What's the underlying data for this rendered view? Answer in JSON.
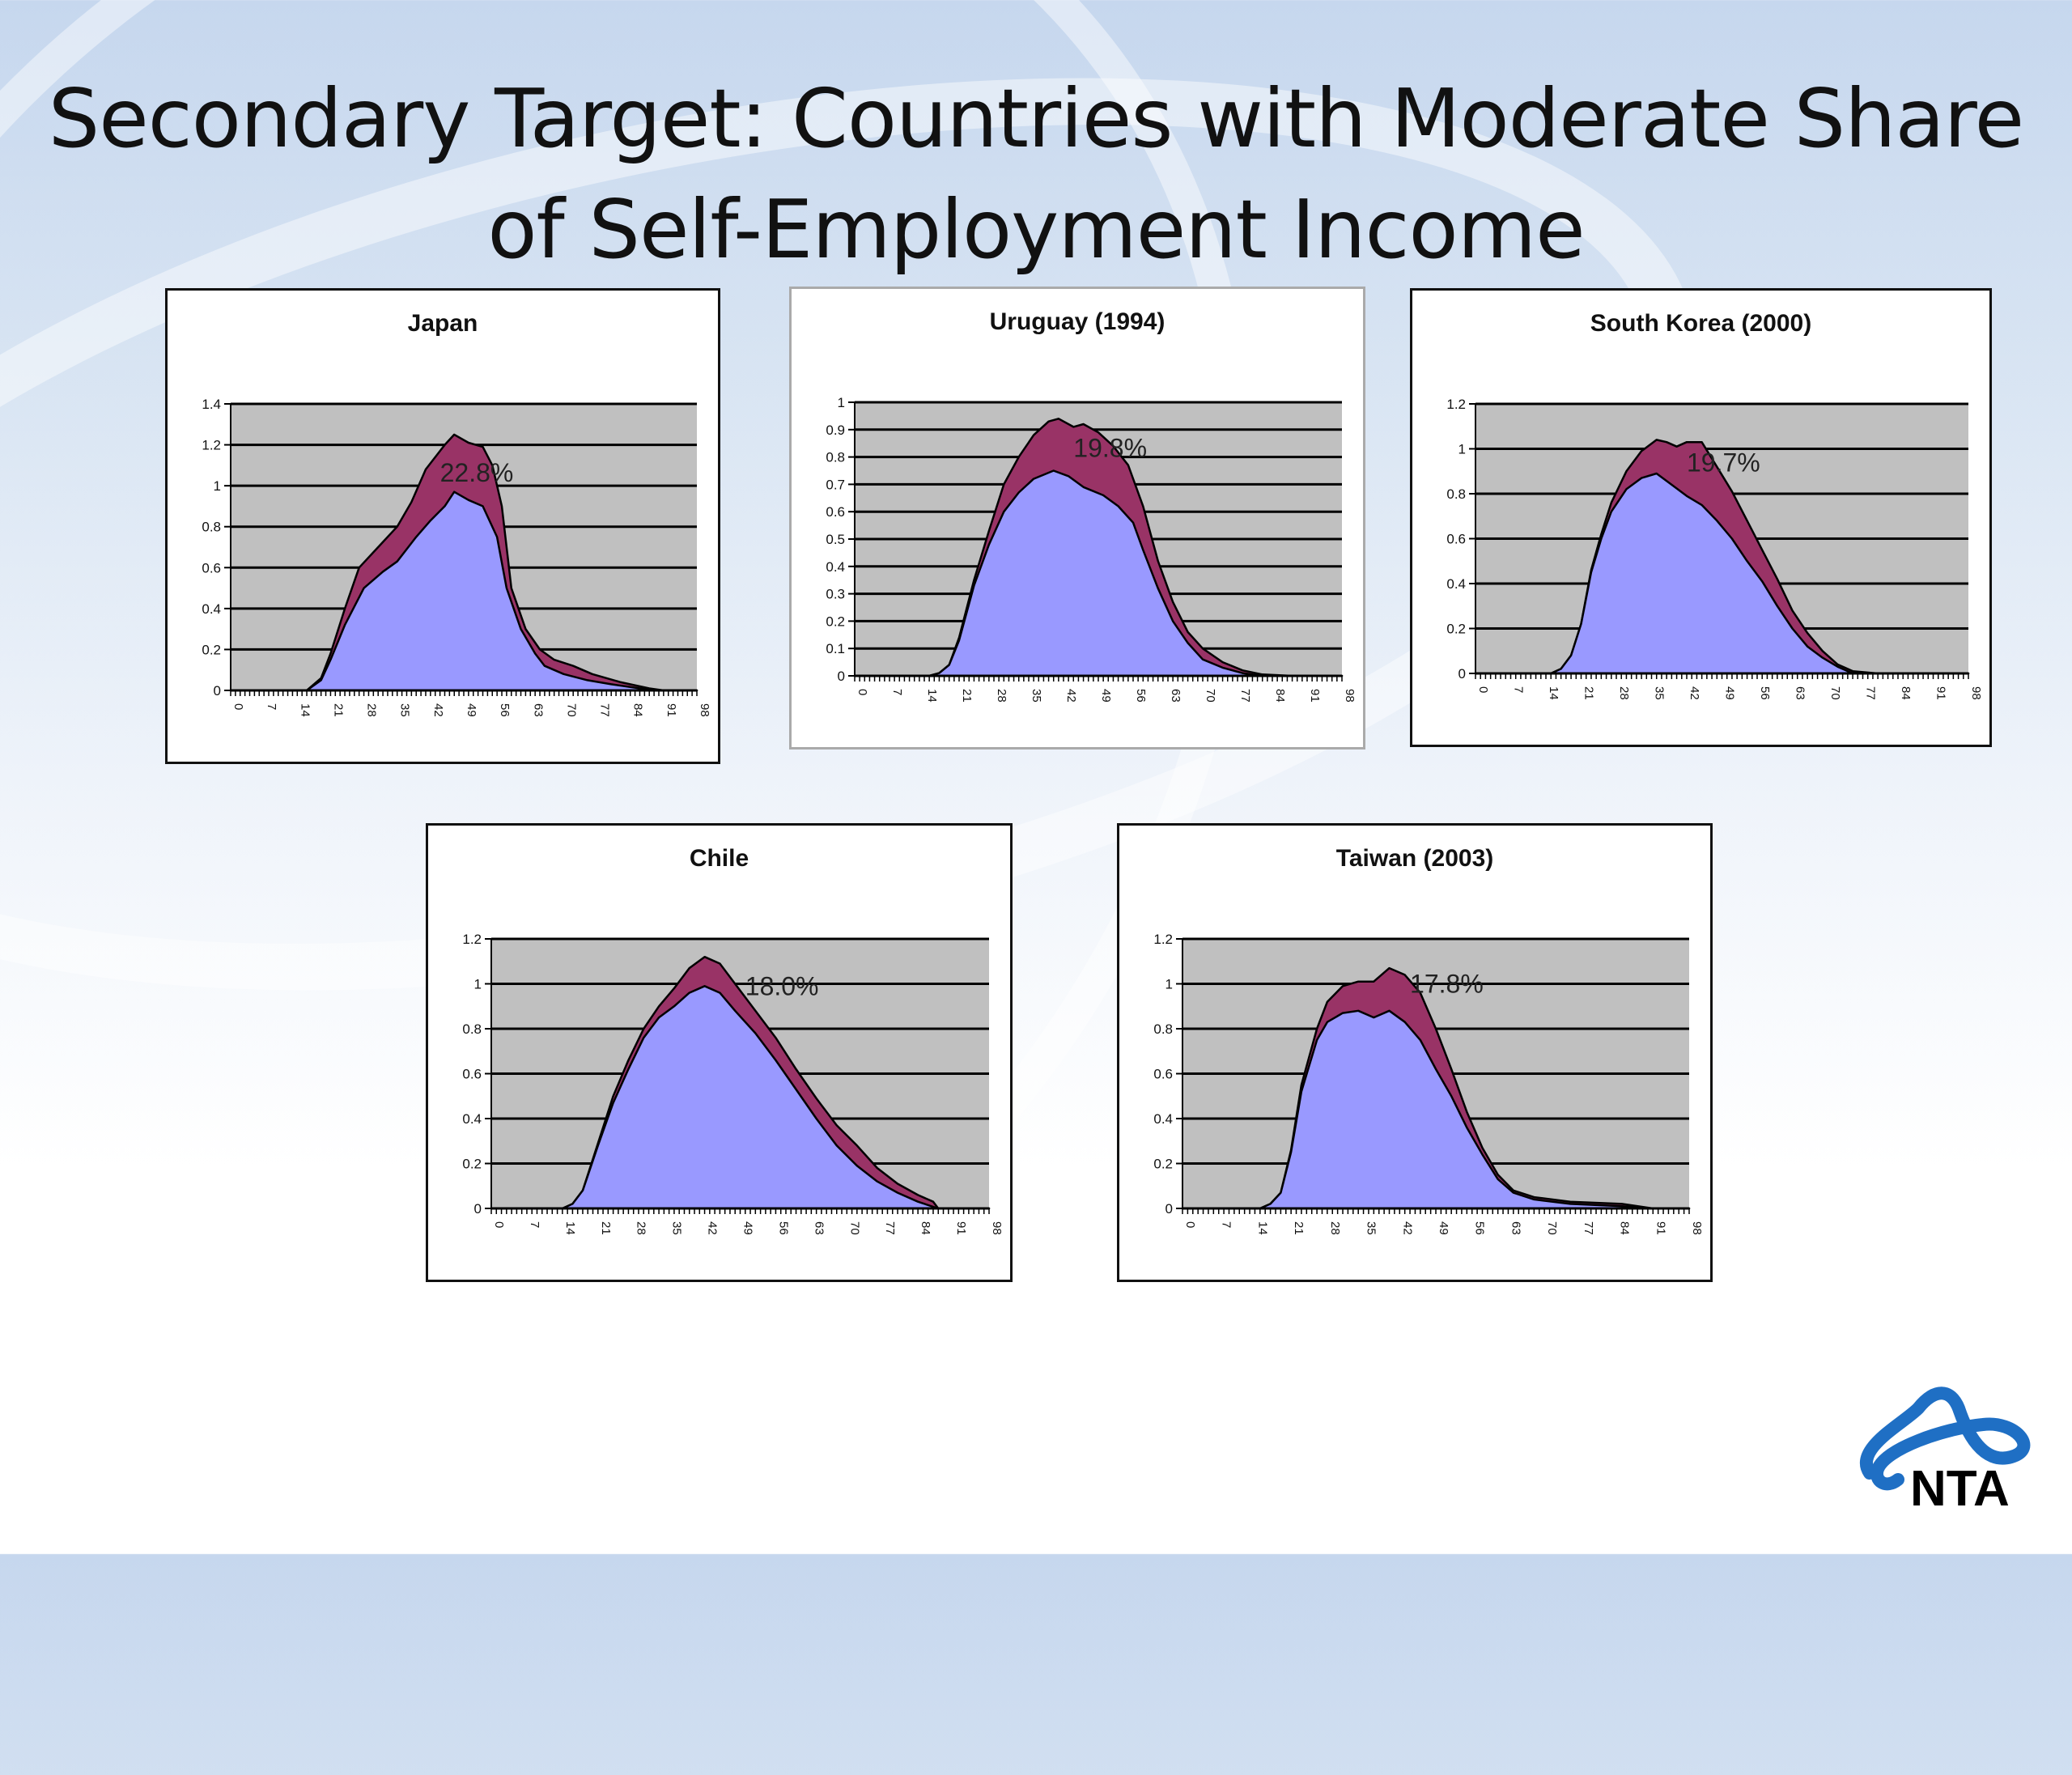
{
  "slide": {
    "title_line1": "Secondary Target: Countries with Moderate Share",
    "title_line2": "of Self-Employment Income",
    "logo_text": "NTA"
  },
  "colors": {
    "base_area": "#9999ff",
    "self_employment_area": "#993366",
    "plot_bg": "#c0c0c0",
    "logo_blue": "#1f6fc4"
  },
  "chart_data": [
    {
      "type": "area",
      "title": "Japan",
      "label": "22.8%",
      "ylim": [
        0,
        1.4
      ],
      "ystep": 0.2,
      "xticks": [
        0,
        7,
        14,
        21,
        28,
        35,
        42,
        49,
        56,
        63,
        70,
        77,
        84,
        91,
        98
      ],
      "grid": true,
      "series": [
        {
          "points": [
            [
              0,
              0
            ],
            [
              16,
              0
            ],
            [
              19,
              0.05
            ],
            [
              21,
              0.15
            ],
            [
              24,
              0.32
            ],
            [
              28,
              0.5
            ],
            [
              32,
              0.58
            ],
            [
              35,
              0.63
            ],
            [
              39,
              0.75
            ],
            [
              42,
              0.83
            ],
            [
              45,
              0.9
            ],
            [
              47,
              0.97
            ],
            [
              50,
              0.93
            ],
            [
              53,
              0.9
            ],
            [
              56,
              0.75
            ],
            [
              58,
              0.5
            ],
            [
              61,
              0.3
            ],
            [
              64,
              0.18
            ],
            [
              66,
              0.12
            ],
            [
              70,
              0.08
            ],
            [
              75,
              0.05
            ],
            [
              80,
              0.03
            ],
            [
              86,
              0.01
            ],
            [
              91,
              0
            ],
            [
              98,
              0
            ]
          ]
        },
        {
          "points": [
            [
              0,
              0
            ],
            [
              16,
              0
            ],
            [
              19,
              0.06
            ],
            [
              21,
              0.18
            ],
            [
              24,
              0.4
            ],
            [
              27,
              0.6
            ],
            [
              31,
              0.7
            ],
            [
              35,
              0.8
            ],
            [
              38,
              0.92
            ],
            [
              41,
              1.08
            ],
            [
              45,
              1.2
            ],
            [
              47,
              1.25
            ],
            [
              50,
              1.21
            ],
            [
              53,
              1.19
            ],
            [
              55,
              1.1
            ],
            [
              57,
              0.9
            ],
            [
              59,
              0.5
            ],
            [
              62,
              0.3
            ],
            [
              65,
              0.2
            ],
            [
              68,
              0.15
            ],
            [
              72,
              0.12
            ],
            [
              76,
              0.08
            ],
            [
              82,
              0.04
            ],
            [
              88,
              0.01
            ],
            [
              91,
              0
            ],
            [
              98,
              0
            ]
          ]
        }
      ]
    },
    {
      "type": "area",
      "title": "Uruguay (1994)",
      "label": "19.8%",
      "ylim": [
        0,
        1
      ],
      "ystep": 0.1,
      "xticks": [
        0,
        7,
        14,
        21,
        28,
        35,
        42,
        49,
        56,
        63,
        70,
        77,
        84,
        91,
        98
      ],
      "grid": true,
      "series": [
        {
          "points": [
            [
              0,
              0
            ],
            [
              15,
              0
            ],
            [
              17,
              0.01
            ],
            [
              19,
              0.04
            ],
            [
              21,
              0.13
            ],
            [
              24,
              0.33
            ],
            [
              27,
              0.48
            ],
            [
              30,
              0.6
            ],
            [
              33,
              0.67
            ],
            [
              36,
              0.72
            ],
            [
              40,
              0.75
            ],
            [
              43,
              0.73
            ],
            [
              46,
              0.69
            ],
            [
              50,
              0.66
            ],
            [
              53,
              0.62
            ],
            [
              56,
              0.56
            ],
            [
              58,
              0.46
            ],
            [
              61,
              0.32
            ],
            [
              64,
              0.2
            ],
            [
              67,
              0.12
            ],
            [
              70,
              0.06
            ],
            [
              74,
              0.03
            ],
            [
              78,
              0.01
            ],
            [
              82,
              0
            ],
            [
              98,
              0
            ]
          ]
        },
        {
          "points": [
            [
              0,
              0
            ],
            [
              15,
              0
            ],
            [
              17,
              0.01
            ],
            [
              19,
              0.04
            ],
            [
              21,
              0.14
            ],
            [
              24,
              0.35
            ],
            [
              27,
              0.53
            ],
            [
              30,
              0.7
            ],
            [
              33,
              0.8
            ],
            [
              36,
              0.88
            ],
            [
              39,
              0.93
            ],
            [
              41,
              0.94
            ],
            [
              44,
              0.91
            ],
            [
              46,
              0.92
            ],
            [
              49,
              0.89
            ],
            [
              52,
              0.84
            ],
            [
              55,
              0.77
            ],
            [
              58,
              0.62
            ],
            [
              61,
              0.42
            ],
            [
              64,
              0.27
            ],
            [
              67,
              0.16
            ],
            [
              70,
              0.1
            ],
            [
              74,
              0.05
            ],
            [
              78,
              0.02
            ],
            [
              82,
              0.005
            ],
            [
              88,
              0
            ],
            [
              98,
              0
            ]
          ]
        }
      ]
    },
    {
      "type": "area",
      "title": "South Korea (2000)",
      "label": "19.7%",
      "ylim": [
        0,
        1.2
      ],
      "ystep": 0.2,
      "xticks": [
        0,
        7,
        14,
        21,
        28,
        35,
        42,
        49,
        56,
        63,
        70,
        77,
        84,
        91,
        98
      ],
      "grid": true,
      "series": [
        {
          "points": [
            [
              0,
              0
            ],
            [
              15,
              0
            ],
            [
              17,
              0.02
            ],
            [
              19,
              0.08
            ],
            [
              21,
              0.22
            ],
            [
              23,
              0.45
            ],
            [
              25,
              0.6
            ],
            [
              27,
              0.72
            ],
            [
              30,
              0.82
            ],
            [
              33,
              0.87
            ],
            [
              36,
              0.89
            ],
            [
              39,
              0.84
            ],
            [
              42,
              0.79
            ],
            [
              45,
              0.75
            ],
            [
              48,
              0.68
            ],
            [
              51,
              0.6
            ],
            [
              54,
              0.5
            ],
            [
              57,
              0.41
            ],
            [
              60,
              0.3
            ],
            [
              63,
              0.2
            ],
            [
              66,
              0.12
            ],
            [
              69,
              0.07
            ],
            [
              72,
              0.03
            ],
            [
              75,
              0
            ],
            [
              98,
              0
            ]
          ]
        },
        {
          "points": [
            [
              0,
              0
            ],
            [
              15,
              0
            ],
            [
              17,
              0.02
            ],
            [
              19,
              0.08
            ],
            [
              21,
              0.22
            ],
            [
              23,
              0.46
            ],
            [
              25,
              0.62
            ],
            [
              27,
              0.76
            ],
            [
              30,
              0.9
            ],
            [
              33,
              0.99
            ],
            [
              36,
              1.04
            ],
            [
              38,
              1.03
            ],
            [
              40,
              1.01
            ],
            [
              42,
              1.03
            ],
            [
              45,
              1.03
            ],
            [
              48,
              0.92
            ],
            [
              51,
              0.81
            ],
            [
              54,
              0.68
            ],
            [
              57,
              0.55
            ],
            [
              60,
              0.42
            ],
            [
              63,
              0.28
            ],
            [
              66,
              0.18
            ],
            [
              69,
              0.1
            ],
            [
              72,
              0.04
            ],
            [
              75,
              0.01
            ],
            [
              80,
              0
            ],
            [
              98,
              0
            ]
          ]
        }
      ]
    },
    {
      "type": "area",
      "title": "Chile",
      "label": "18.0%",
      "ylim": [
        0,
        1.2
      ],
      "ystep": 0.2,
      "xticks": [
        0,
        7,
        14,
        21,
        28,
        35,
        42,
        49,
        56,
        63,
        70,
        77,
        84,
        91,
        98
      ],
      "grid": true,
      "series": [
        {
          "points": [
            [
              0,
              0
            ],
            [
              14,
              0
            ],
            [
              16,
              0.02
            ],
            [
              18,
              0.08
            ],
            [
              21,
              0.28
            ],
            [
              24,
              0.47
            ],
            [
              27,
              0.62
            ],
            [
              30,
              0.76
            ],
            [
              33,
              0.85
            ],
            [
              36,
              0.9
            ],
            [
              39,
              0.96
            ],
            [
              42,
              0.99
            ],
            [
              45,
              0.96
            ],
            [
              48,
              0.88
            ],
            [
              52,
              0.78
            ],
            [
              56,
              0.66
            ],
            [
              60,
              0.53
            ],
            [
              64,
              0.4
            ],
            [
              68,
              0.28
            ],
            [
              72,
              0.19
            ],
            [
              76,
              0.12
            ],
            [
              80,
              0.07
            ],
            [
              84,
              0.03
            ],
            [
              88,
              0
            ],
            [
              98,
              0
            ]
          ]
        },
        {
          "points": [
            [
              0,
              0
            ],
            [
              14,
              0
            ],
            [
              16,
              0.02
            ],
            [
              18,
              0.08
            ],
            [
              21,
              0.29
            ],
            [
              24,
              0.5
            ],
            [
              27,
              0.66
            ],
            [
              30,
              0.8
            ],
            [
              33,
              0.9
            ],
            [
              36,
              0.98
            ],
            [
              39,
              1.07
            ],
            [
              42,
              1.12
            ],
            [
              45,
              1.09
            ],
            [
              48,
              1.0
            ],
            [
              52,
              0.88
            ],
            [
              56,
              0.76
            ],
            [
              60,
              0.62
            ],
            [
              64,
              0.49
            ],
            [
              68,
              0.37
            ],
            [
              72,
              0.28
            ],
            [
              76,
              0.18
            ],
            [
              80,
              0.11
            ],
            [
              84,
              0.06
            ],
            [
              87,
              0.03
            ],
            [
              88,
              0
            ],
            [
              98,
              0
            ]
          ]
        }
      ]
    },
    {
      "type": "area",
      "title": "Taiwan (2003)",
      "label": "17.8%",
      "ylim": [
        0,
        1.2
      ],
      "ystep": 0.2,
      "xticks": [
        0,
        7,
        14,
        21,
        28,
        35,
        42,
        49,
        56,
        63,
        70,
        77,
        84,
        91,
        98
      ],
      "grid": true,
      "series": [
        {
          "points": [
            [
              0,
              0
            ],
            [
              15,
              0
            ],
            [
              17,
              0.02
            ],
            [
              19,
              0.07
            ],
            [
              21,
              0.25
            ],
            [
              23,
              0.52
            ],
            [
              26,
              0.75
            ],
            [
              28,
              0.83
            ],
            [
              31,
              0.87
            ],
            [
              34,
              0.88
            ],
            [
              37,
              0.85
            ],
            [
              40,
              0.88
            ],
            [
              43,
              0.83
            ],
            [
              46,
              0.75
            ],
            [
              49,
              0.62
            ],
            [
              52,
              0.5
            ],
            [
              55,
              0.36
            ],
            [
              58,
              0.24
            ],
            [
              61,
              0.13
            ],
            [
              64,
              0.07
            ],
            [
              68,
              0.04
            ],
            [
              75,
              0.02
            ],
            [
              85,
              0.01
            ],
            [
              91,
              0
            ],
            [
              98,
              0
            ]
          ]
        },
        {
          "points": [
            [
              0,
              0
            ],
            [
              15,
              0
            ],
            [
              17,
              0.02
            ],
            [
              19,
              0.07
            ],
            [
              21,
              0.26
            ],
            [
              23,
              0.55
            ],
            [
              26,
              0.8
            ],
            [
              28,
              0.92
            ],
            [
              31,
              0.99
            ],
            [
              34,
              1.01
            ],
            [
              37,
              1.01
            ],
            [
              40,
              1.07
            ],
            [
              43,
              1.04
            ],
            [
              46,
              0.96
            ],
            [
              49,
              0.8
            ],
            [
              52,
              0.62
            ],
            [
              55,
              0.43
            ],
            [
              58,
              0.27
            ],
            [
              61,
              0.15
            ],
            [
              64,
              0.08
            ],
            [
              68,
              0.05
            ],
            [
              75,
              0.03
            ],
            [
              85,
              0.02
            ],
            [
              91,
              0
            ],
            [
              98,
              0
            ]
          ]
        }
      ]
    }
  ]
}
